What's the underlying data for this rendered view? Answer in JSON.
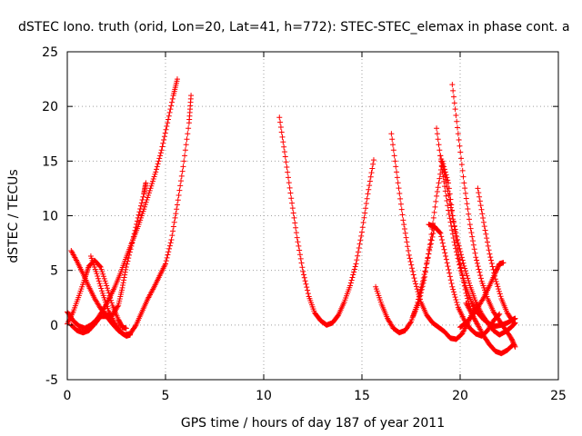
{
  "chart_data": {
    "type": "scatter",
    "title": "dSTEC Iono. truth (orid, Lon=20, Lat=41, h=772): STEC-STEC_elemax in phase cont. a",
    "xlabel": "GPS time / hours of day 187 of year 2011",
    "ylabel": "dSTEC  / TECUs",
    "xlim": [
      0,
      25
    ],
    "ylim": [
      -5,
      25
    ],
    "x_ticks": [
      0,
      5,
      10,
      15,
      20,
      25
    ],
    "y_ticks": [
      -5,
      0,
      5,
      10,
      15,
      20,
      25
    ],
    "grid": true,
    "marker": "+",
    "color": "#ff0000",
    "series": [
      {
        "x": [
          0.0,
          0.3,
          0.6,
          0.9,
          1.2,
          1.5,
          1.8,
          2.1,
          2.4,
          2.7,
          3.0,
          3.3,
          3.6,
          3.9,
          4.2,
          4.5,
          4.8,
          5.1,
          5.4,
          5.6
        ],
        "y": [
          1.2,
          0.4,
          -0.1,
          -0.3,
          0.0,
          0.5,
          1.3,
          2.3,
          3.4,
          4.7,
          6.2,
          7.6,
          9.0,
          10.6,
          12.3,
          14.0,
          16.0,
          18.5,
          21.0,
          22.5
        ]
      },
      {
        "x": [
          0.2,
          0.5,
          0.8,
          1.1,
          1.4,
          1.7,
          2.0,
          2.3,
          2.6,
          2.8,
          3.0,
          3.3,
          3.6,
          3.9,
          4.0
        ],
        "y": [
          6.8,
          5.8,
          4.7,
          3.5,
          2.4,
          1.5,
          0.9,
          0.9,
          1.8,
          3.4,
          5.3,
          7.5,
          9.8,
          12.0,
          13.0
        ]
      },
      {
        "x": [
          0.2,
          0.5,
          0.8,
          1.1,
          1.4,
          1.7,
          2.0,
          2.3,
          2.6,
          2.9,
          3.2,
          3.5,
          3.8,
          4.1,
          4.4,
          4.7,
          5.0,
          5.3,
          5.6,
          5.9,
          6.2,
          6.3
        ],
        "y": [
          0.0,
          -0.5,
          -0.7,
          -0.5,
          0.1,
          0.8,
          0.8,
          0.1,
          -0.5,
          -0.9,
          -0.8,
          0.0,
          1.2,
          2.4,
          3.4,
          4.5,
          5.6,
          7.8,
          11.0,
          14.5,
          18.5,
          21.0
        ]
      },
      {
        "x": [
          0.0,
          0.3,
          0.6,
          0.9,
          1.1,
          1.4,
          1.7,
          2.0,
          2.3,
          2.6,
          2.8,
          3.0
        ],
        "y": [
          0.1,
          1.2,
          2.7,
          4.3,
          5.4,
          5.9,
          5.3,
          3.6,
          1.8,
          0.5,
          -0.2,
          -0.3
        ]
      },
      {
        "x": [
          1.2,
          1.5,
          1.8,
          2.1,
          2.4,
          2.7,
          3.0,
          3.2
        ],
        "y": [
          6.3,
          4.7,
          2.9,
          1.3,
          0.2,
          -0.6,
          -1.0,
          -0.9
        ]
      },
      {
        "x": [
          10.8,
          11.1,
          11.4,
          11.7,
          12.0,
          12.3,
          12.6,
          12.9,
          13.2,
          13.5,
          13.8,
          14.1,
          14.4,
          14.7,
          15.0,
          15.3,
          15.6
        ],
        "y": [
          19.0,
          15.4,
          11.6,
          8.0,
          4.9,
          2.6,
          1.1,
          0.4,
          0.0,
          0.2,
          0.9,
          2.1,
          3.6,
          5.6,
          8.5,
          12.0,
          15.1
        ]
      },
      {
        "x": [
          15.7,
          16.0,
          16.3,
          16.6,
          16.9,
          17.2,
          17.5,
          17.8,
          18.1,
          18.4,
          18.7
        ],
        "y": [
          3.5,
          1.9,
          0.6,
          -0.3,
          -0.7,
          -0.5,
          0.3,
          1.8,
          4.0,
          6.5,
          9.0
        ]
      },
      {
        "x": [
          16.5,
          16.8,
          17.1,
          17.4,
          17.7,
          18.0,
          18.3,
          18.6,
          18.9,
          19.2,
          19.5,
          19.8,
          20.1,
          20.4,
          20.7
        ],
        "y": [
          17.5,
          13.5,
          9.6,
          6.4,
          4.0,
          2.1,
          0.9,
          0.2,
          -0.2,
          -0.6,
          -1.2,
          -1.3,
          -0.8,
          0.2,
          1.5
        ]
      },
      {
        "x": [
          17.6,
          17.9,
          18.2,
          18.5,
          18.8,
          19.1,
          19.4,
          19.7,
          20.0,
          20.3,
          20.6,
          20.9
        ],
        "y": [
          0.8,
          2.1,
          4.4,
          7.8,
          11.8,
          15.0,
          13.0,
          9.0,
          5.6,
          2.9,
          1.0,
          0.0
        ]
      },
      {
        "x": [
          18.4,
          18.7,
          19.0,
          19.3,
          19.6,
          19.9,
          20.2,
          20.5,
          20.8,
          21.1,
          21.4,
          21.7,
          22.0
        ],
        "y": [
          9.2,
          9.0,
          8.4,
          6.0,
          3.5,
          1.6,
          0.5,
          -0.3,
          -0.8,
          -1.0,
          -0.5,
          0.4,
          1.0
        ]
      },
      {
        "x": [
          18.8,
          19.1,
          19.4,
          19.7,
          20.0,
          20.3,
          20.6,
          20.9,
          21.2,
          21.5,
          21.8,
          22.1,
          22.4,
          22.7,
          22.8
        ],
        "y": [
          18.0,
          14.0,
          10.5,
          7.6,
          5.2,
          3.4,
          2.0,
          1.1,
          0.5,
          0.1,
          -0.1,
          0.0,
          0.2,
          0.5,
          0.6
        ]
      },
      {
        "x": [
          19.6,
          19.9,
          20.2,
          20.5,
          20.8,
          21.1,
          21.4,
          21.7,
          22.0,
          22.3,
          22.6,
          22.8
        ],
        "y": [
          22.0,
          17.5,
          13.0,
          9.2,
          6.2,
          4.0,
          2.4,
          1.2,
          0.4,
          -0.4,
          -1.2,
          -2.0
        ]
      },
      {
        "x": [
          20.3,
          20.6,
          20.9,
          21.2,
          21.5,
          21.8,
          22.1,
          22.4,
          22.7
        ],
        "y": [
          2.0,
          1.0,
          0.0,
          -1.0,
          -1.8,
          -2.4,
          -2.6,
          -2.3,
          -1.8
        ]
      },
      {
        "x": [
          19.0,
          19.3,
          19.6,
          19.9,
          20.2,
          20.5,
          20.8,
          21.1,
          21.4,
          21.7,
          22.0,
          22.3,
          22.6,
          22.8
        ],
        "y": [
          15.5,
          13.0,
          10.0,
          7.5,
          5.4,
          3.6,
          2.1,
          1.0,
          0.2,
          -0.5,
          -0.9,
          -0.6,
          -0.2,
          0.2
        ]
      },
      {
        "x": [
          20.9,
          21.2,
          21.5,
          21.8,
          22.1,
          22.4,
          22.7
        ],
        "y": [
          12.5,
          9.4,
          6.5,
          4.2,
          2.4,
          1.1,
          0.3
        ]
      },
      {
        "x": [
          20.0,
          20.3,
          20.6,
          20.9,
          21.2,
          21.5,
          21.8,
          22.0,
          22.2
        ],
        "y": [
          -0.2,
          0.2,
          0.8,
          1.6,
          2.5,
          3.6,
          4.8,
          5.6,
          5.7
        ]
      }
    ]
  }
}
